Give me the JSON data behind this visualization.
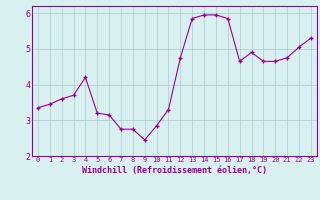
{
  "x": [
    0,
    1,
    2,
    3,
    4,
    5,
    6,
    7,
    8,
    9,
    10,
    11,
    12,
    13,
    14,
    15,
    16,
    17,
    18,
    19,
    20,
    21,
    22,
    23
  ],
  "y": [
    3.35,
    3.45,
    3.6,
    3.7,
    4.2,
    3.2,
    3.15,
    2.75,
    2.75,
    2.45,
    2.85,
    3.3,
    4.75,
    5.85,
    5.95,
    5.95,
    5.85,
    4.65,
    4.9,
    4.65,
    4.65,
    4.75,
    5.05,
    5.3
  ],
  "line_color": "#990099",
  "marker": "+",
  "marker_size": 3,
  "marker_color": "#990099",
  "bg_color": "#d8f0f0",
  "grid_color": "#aacccc",
  "xlabel": "Windchill (Refroidissement éolien,°C)",
  "xlabel_fontsize": 6,
  "tick_fontsize": 6,
  "ylim": [
    2,
    6.2
  ],
  "xlim": [
    -0.5,
    23.5
  ],
  "yticks": [
    2,
    3,
    4,
    5,
    6
  ],
  "xticks": [
    0,
    1,
    2,
    3,
    4,
    5,
    6,
    7,
    8,
    9,
    10,
    11,
    12,
    13,
    14,
    15,
    16,
    17,
    18,
    19,
    20,
    21,
    22,
    23
  ]
}
